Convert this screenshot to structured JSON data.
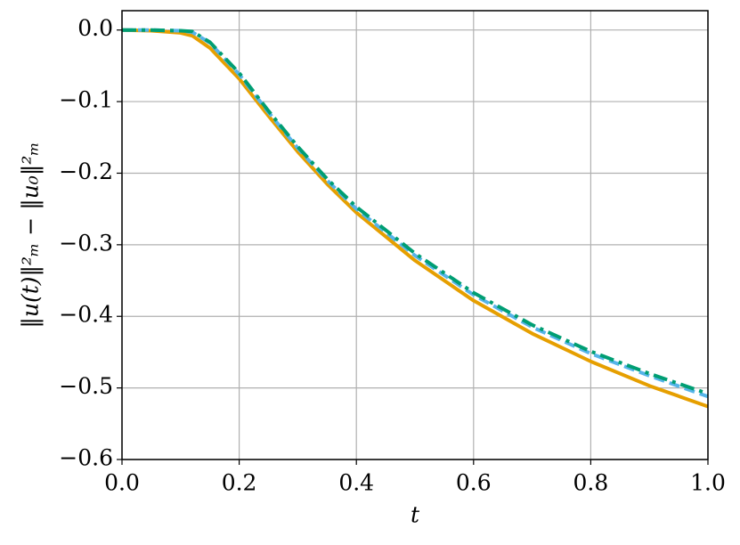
{
  "chart_data": {
    "type": "line",
    "xlabel": "t",
    "ylabel": "‖u(t)‖²ₘ − ‖u₀‖²ₘ",
    "x": [
      0,
      0.05,
      0.1,
      0.12,
      0.15,
      0.2,
      0.25,
      0.3,
      0.35,
      0.4,
      0.5,
      0.6,
      0.7,
      0.8,
      0.9,
      1.0
    ],
    "series": [
      {
        "color": "#e69f00",
        "linestyle": "solid",
        "values": [
          0,
          -0.001,
          -0.004,
          -0.008,
          -0.025,
          -0.068,
          -0.12,
          -0.17,
          -0.215,
          -0.255,
          -0.322,
          -0.378,
          -0.424,
          -0.463,
          -0.497,
          -0.526
        ]
      },
      {
        "color": "#56b4e9",
        "linestyle": "dashed",
        "values": [
          0,
          0,
          -0.001,
          -0.003,
          -0.018,
          -0.062,
          -0.115,
          -0.165,
          -0.21,
          -0.25,
          -0.315,
          -0.37,
          -0.415,
          -0.452,
          -0.483,
          -0.512
        ]
      },
      {
        "color": "#009e73",
        "linestyle": "dashdot",
        "values": [
          0,
          0,
          -0.001,
          -0.002,
          -0.017,
          -0.06,
          -0.113,
          -0.163,
          -0.208,
          -0.247,
          -0.312,
          -0.367,
          -0.412,
          -0.449,
          -0.48,
          -0.508
        ]
      }
    ],
    "xlim": [
      0,
      1
    ],
    "ylim": [
      -0.6,
      0.027
    ],
    "xticks": [
      {
        "value": 0,
        "label": "0.0"
      },
      {
        "value": 0.2,
        "label": "0.2"
      },
      {
        "value": 0.4,
        "label": "0.4"
      },
      {
        "value": 0.6,
        "label": "0.6"
      },
      {
        "value": 0.8,
        "label": "0.8"
      },
      {
        "value": 1,
        "label": "1.0"
      }
    ],
    "yticks": [
      {
        "value": 0,
        "label": "0.0"
      },
      {
        "value": -0.1,
        "label": "−0.1"
      },
      {
        "value": -0.2,
        "label": "−0.2"
      },
      {
        "value": -0.3,
        "label": "−0.3"
      },
      {
        "value": -0.4,
        "label": "−0.4"
      },
      {
        "value": -0.5,
        "label": "−0.5"
      },
      {
        "value": -0.6,
        "label": "−0.6"
      }
    ],
    "grid": true
  }
}
